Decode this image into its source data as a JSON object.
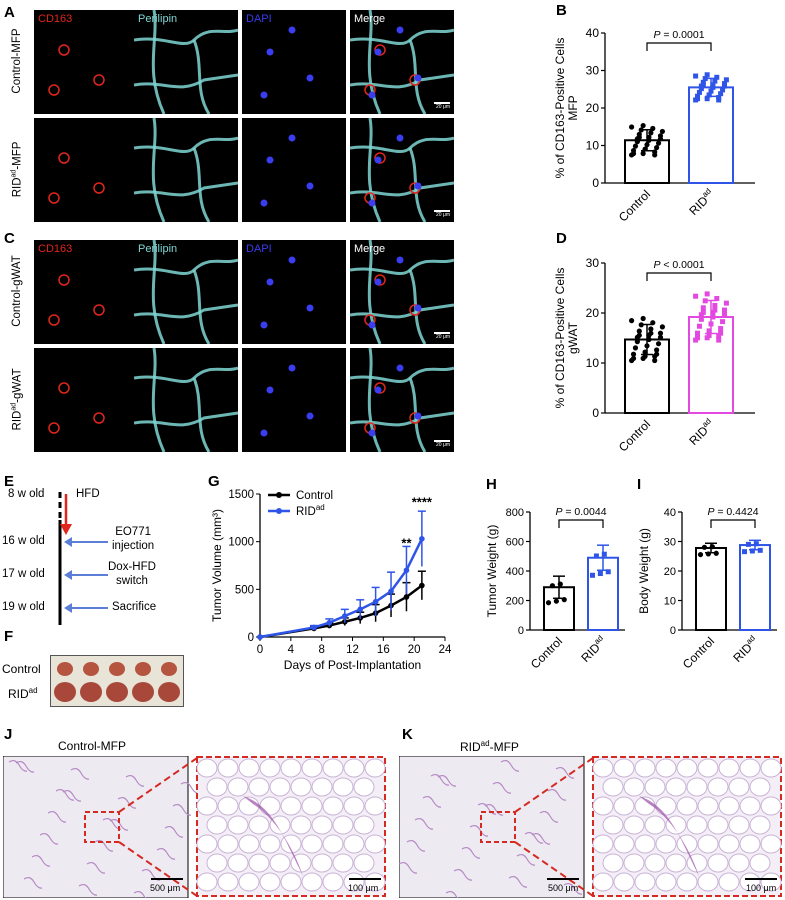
{
  "panels": {
    "A": "A",
    "B": "B",
    "C": "C",
    "D": "D",
    "E": "E",
    "F": "F",
    "G": "G",
    "H": "H",
    "I": "I",
    "J": "J",
    "K": "K"
  },
  "microscopy": {
    "channels": [
      "CD163",
      "Perilipin",
      "DAPI",
      "Merge"
    ],
    "channel_colors": [
      "#e0261c",
      "#7fd6d4",
      "#3a3df0",
      "#ffffff"
    ],
    "scale_label": "20 μm",
    "A_rows": [
      "Control-MFP",
      "RIDad-MFP"
    ],
    "C_rows": [
      "Control-gWAT",
      "RIDad-gWAT"
    ]
  },
  "panelE": {
    "timepoints": [
      "8 w old",
      "16 w old",
      "17 w old",
      "19 w old"
    ],
    "hfd": "HFD",
    "events": [
      "EO771 injection",
      "Dox-HFD switch",
      "Sacrifice"
    ],
    "event_lines": [
      [
        "EO771",
        "injection"
      ],
      [
        "Dox-HFD",
        "switch"
      ],
      [
        "Sacrifice"
      ]
    ]
  },
  "panelF": {
    "rows": [
      "Control",
      "RID"
    ],
    "rows_sup": [
      "",
      "ad"
    ]
  },
  "panelJ": {
    "title": "Control-MFP",
    "scale_low": "500 μm",
    "scale_high": "100 μm"
  },
  "panelK": {
    "title": "RID",
    "title_sup": "ad",
    "title_suffix": "-MFP",
    "scale_low": "500 μm",
    "scale_high": "100 μm"
  },
  "chart_data": [
    {
      "id": "B",
      "type": "bar",
      "ylabel_lines": [
        "% of CD163-Positive Cells",
        "MFP"
      ],
      "categories": [
        "Control",
        "RID"
      ],
      "category_sup": [
        "",
        "ad"
      ],
      "ylim": [
        0,
        40
      ],
      "yticks": [
        0,
        10,
        20,
        30,
        40
      ],
      "series": [
        {
          "values": [
            11.4,
            25.5
          ],
          "errors": [
            2.8,
            2.4
          ]
        }
      ],
      "colors": [
        "#000000",
        "#2f55e8"
      ],
      "pvalue": "P = 0.0001"
    },
    {
      "id": "D",
      "type": "bar",
      "ylabel_lines": [
        "% of CD163-Positive Cells",
        "gWAT"
      ],
      "categories": [
        "Control",
        "RID"
      ],
      "category_sup": [
        "",
        "ad"
      ],
      "ylim": [
        0,
        30
      ],
      "yticks": [
        0,
        10,
        20,
        30
      ],
      "series": [
        {
          "values": [
            14.7,
            19.2
          ],
          "errors": [
            3.0,
            3.3
          ]
        }
      ],
      "colors": [
        "#000000",
        "#e349e0"
      ],
      "pvalue": "P < 0.0001"
    },
    {
      "id": "G",
      "type": "line",
      "xlabel": "Days of Post-Implantation",
      "ylabel": "Tumor Volume (mm³)",
      "xlim": [
        0,
        24
      ],
      "ylim": [
        0,
        1500
      ],
      "xticks": [
        0,
        4,
        8,
        12,
        16,
        20,
        24
      ],
      "yticks": [
        0,
        500,
        1000,
        1500
      ],
      "series": [
        {
          "name": "Control",
          "color": "#000000",
          "x": [
            0,
            7,
            9,
            11,
            13,
            15,
            17,
            19,
            21
          ],
          "y": [
            0,
            90,
            120,
            160,
            200,
            250,
            330,
            420,
            540
          ],
          "err": [
            0,
            15,
            25,
            40,
            60,
            90,
            120,
            150,
            150
          ]
        },
        {
          "name": "RID",
          "name_sup": "ad",
          "color": "#2f55e8",
          "x": [
            0,
            7,
            9,
            11,
            13,
            15,
            17,
            19,
            21
          ],
          "y": [
            0,
            100,
            150,
            220,
            290,
            370,
            480,
            700,
            1030
          ],
          "err": [
            0,
            20,
            40,
            70,
            100,
            150,
            200,
            250,
            290
          ]
        }
      ],
      "annotations": [
        {
          "x": 19,
          "y": 940,
          "text": "**"
        },
        {
          "x": 21,
          "y": 1370,
          "text": "****"
        }
      ]
    },
    {
      "id": "H",
      "type": "bar",
      "ylabel": "Tumor Weight (g)",
      "categories": [
        "Control",
        "RID"
      ],
      "category_sup": [
        "",
        "ad"
      ],
      "ylim": [
        0,
        800
      ],
      "yticks": [
        0,
        200,
        400,
        600,
        800
      ],
      "series": [
        {
          "values": [
            290,
            490
          ],
          "errors": [
            75,
            85
          ]
        }
      ],
      "colors": [
        "#000000",
        "#2f55e8"
      ],
      "pvalue": "P = 0.0044"
    },
    {
      "id": "I",
      "type": "bar",
      "ylabel": "Body Weight (g)",
      "categories": [
        "Control",
        "RID"
      ],
      "category_sup": [
        "",
        "ad"
      ],
      "ylim": [
        0,
        40
      ],
      "yticks": [
        0,
        10,
        20,
        30,
        40
      ],
      "series": [
        {
          "values": [
            27.8,
            28.8
          ],
          "errors": [
            1.6,
            1.6
          ]
        }
      ],
      "colors": [
        "#000000",
        "#2f55e8"
      ],
      "pvalue": "P = 0.4424"
    }
  ]
}
